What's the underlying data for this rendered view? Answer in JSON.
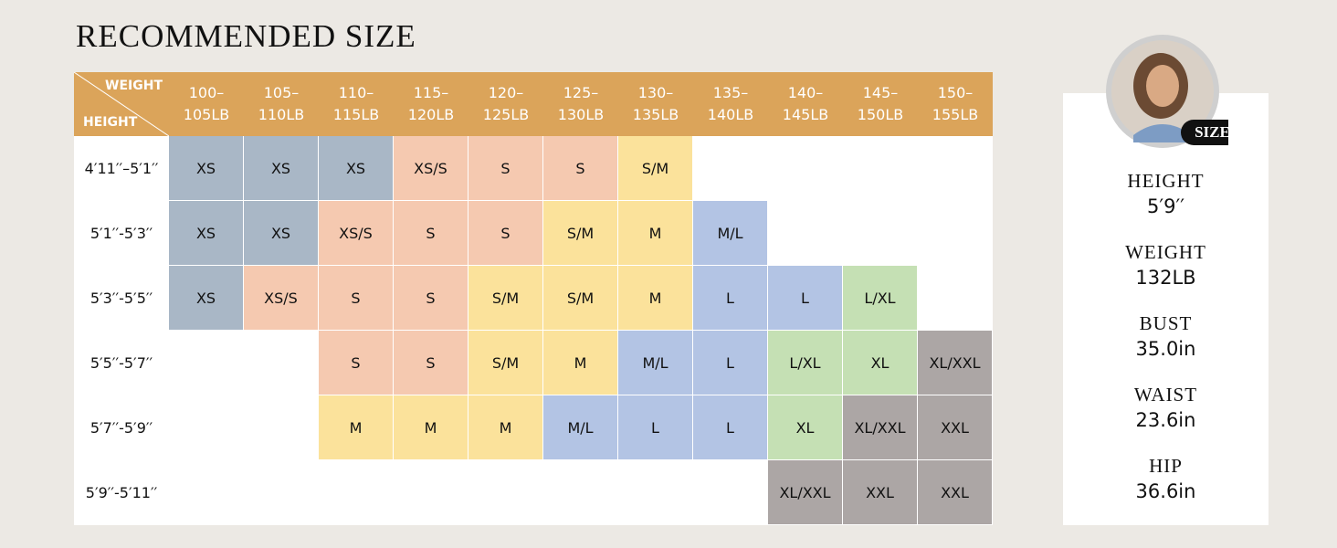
{
  "title": "RECOMMENDED SIZE",
  "table": {
    "corner": {
      "top": "WEIGHT",
      "bottom": "HEIGHT"
    },
    "columns": [
      [
        "100–",
        "105LB"
      ],
      [
        "105–",
        "110LB"
      ],
      [
        "110–",
        "115LB"
      ],
      [
        "115–",
        "120LB"
      ],
      [
        "120–",
        "125LB"
      ],
      [
        "125–",
        "130LB"
      ],
      [
        "130–",
        "135LB"
      ],
      [
        "135–",
        "140LB"
      ],
      [
        "140–",
        "145LB"
      ],
      [
        "145–",
        "150LB"
      ],
      [
        "150–",
        "155LB"
      ]
    ],
    "rows": [
      {
        "label": "4′11′′–5′1′′",
        "cells": [
          {
            "text": "XS",
            "color": "#a9b7c6"
          },
          {
            "text": "XS",
            "color": "#a9b7c6"
          },
          {
            "text": "XS",
            "color": "#a9b7c6"
          },
          {
            "text": "XS/S",
            "color": "#f5c9b0"
          },
          {
            "text": "S",
            "color": "#f5c9b0"
          },
          {
            "text": "S",
            "color": "#f5c9b0"
          },
          {
            "text": "S/M",
            "color": "#fbe29b"
          },
          null,
          null,
          null,
          null
        ]
      },
      {
        "label": "5′1′′-5′3′′",
        "cells": [
          {
            "text": "XS",
            "color": "#a9b7c6"
          },
          {
            "text": "XS",
            "color": "#a9b7c6"
          },
          {
            "text": "XS/S",
            "color": "#f5c9b0"
          },
          {
            "text": "S",
            "color": "#f5c9b0"
          },
          {
            "text": "S",
            "color": "#f5c9b0"
          },
          {
            "text": "S/M",
            "color": "#fbe29b"
          },
          {
            "text": "M",
            "color": "#fbe29b"
          },
          {
            "text": "M/L",
            "color": "#b3c4e4"
          },
          null,
          null,
          null
        ]
      },
      {
        "label": "5′3′′-5′5′′",
        "cells": [
          {
            "text": "XS",
            "color": "#a9b7c6"
          },
          {
            "text": "XS/S",
            "color": "#f5c9b0"
          },
          {
            "text": "S",
            "color": "#f5c9b0"
          },
          {
            "text": "S",
            "color": "#f5c9b0"
          },
          {
            "text": "S/M",
            "color": "#fbe29b"
          },
          {
            "text": "S/M",
            "color": "#fbe29b"
          },
          {
            "text": "M",
            "color": "#fbe29b"
          },
          {
            "text": "L",
            "color": "#b3c4e4"
          },
          {
            "text": "L",
            "color": "#b3c4e4"
          },
          {
            "text": "L/XL",
            "color": "#c5e0b4"
          },
          null
        ]
      },
      {
        "label": "5′5′′-5′7′′",
        "cells": [
          null,
          null,
          {
            "text": "S",
            "color": "#f5c9b0"
          },
          {
            "text": "S",
            "color": "#f5c9b0"
          },
          {
            "text": "S/M",
            "color": "#fbe29b"
          },
          {
            "text": "M",
            "color": "#fbe29b"
          },
          {
            "text": "M/L",
            "color": "#b3c4e4"
          },
          {
            "text": "L",
            "color": "#b3c4e4"
          },
          {
            "text": "L/XL",
            "color": "#c5e0b4"
          },
          {
            "text": "XL",
            "color": "#c5e0b4"
          },
          {
            "text": "XL/XXL",
            "color": "#aca6a5"
          }
        ]
      },
      {
        "label": "5′7′′-5′9′′",
        "cells": [
          null,
          null,
          {
            "text": "M",
            "color": "#fbe29b"
          },
          {
            "text": "M",
            "color": "#fbe29b"
          },
          {
            "text": "M",
            "color": "#fbe29b"
          },
          {
            "text": "M/L",
            "color": "#b3c4e4"
          },
          {
            "text": "L",
            "color": "#b3c4e4"
          },
          {
            "text": "L",
            "color": "#b3c4e4"
          },
          {
            "text": "XL",
            "color": "#c5e0b4"
          },
          {
            "text": "XL/XXL",
            "color": "#aca6a5"
          },
          {
            "text": "XXL",
            "color": "#aca6a5"
          }
        ]
      },
      {
        "label": "5′9′′-5′11′′",
        "cells": [
          null,
          null,
          null,
          null,
          null,
          null,
          null,
          null,
          {
            "text": "XL/XXL",
            "color": "#aca6a5"
          },
          {
            "text": "XXL",
            "color": "#aca6a5"
          },
          {
            "text": "XXL",
            "color": "#aca6a5"
          }
        ]
      }
    ]
  },
  "model": {
    "badge": "SIZE:S",
    "measurements": [
      {
        "label": "HEIGHT",
        "value": "5′9′′"
      },
      {
        "label": "WEIGHT",
        "value": "132LB"
      },
      {
        "label": "BUST",
        "value": "35.0in"
      },
      {
        "label": "WAIST",
        "value": "23.6in"
      },
      {
        "label": "HIP",
        "value": "36.6in"
      }
    ]
  }
}
